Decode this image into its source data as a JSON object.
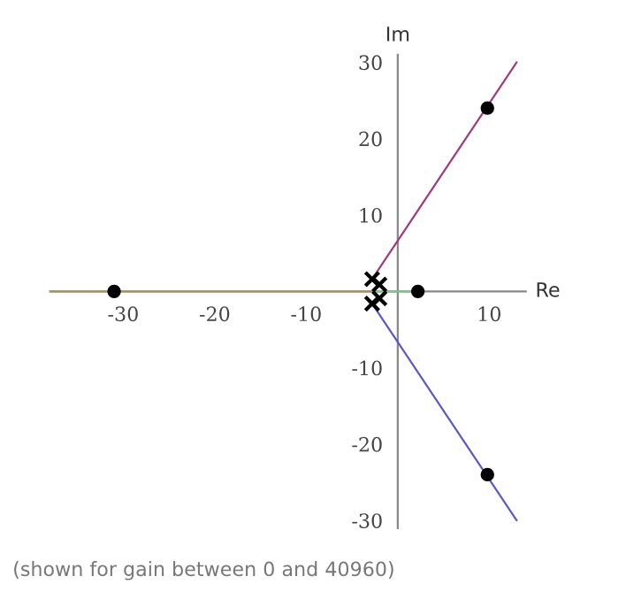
{
  "chart_data": {
    "type": "line",
    "xlabel": "Re",
    "ylabel": "Im",
    "annotations": [
      "(shown for gain between 0 and 40960)"
    ],
    "series": [
      {
        "color": "#9e3d7c",
        "x": [
          -2.8,
          13
        ],
        "values": [
          1.6,
          30
        ]
      },
      {
        "color": "#5a5ac8",
        "x": [
          -2.8,
          13
        ],
        "values": [
          -1.6,
          -30
        ]
      },
      {
        "color": "#a8945a",
        "x": [
          -2.5,
          -38
        ],
        "values": [
          0,
          0
        ]
      },
      {
        "color": "#7cc48c",
        "x": [
          -2.5,
          2.2
        ],
        "values": [
          0,
          0
        ]
      },
      {
        "type": "scatter",
        "marker": "cross",
        "color": "#000000",
        "x": [
          -2.8,
          -2.0,
          -2.0,
          -2.8
        ],
        "values": [
          1.6,
          0.9,
          -0.9,
          -1.6
        ]
      },
      {
        "type": "scatter",
        "marker": "circle",
        "color": "#000000",
        "x": [
          -31,
          2.2,
          9.8,
          9.8
        ],
        "values": [
          0,
          0,
          24,
          -24
        ]
      }
    ],
    "xlim": [
      -38,
      14
    ],
    "ylim": [
      -31,
      31
    ],
    "xticks": [
      -30,
      -20,
      -10,
      10
    ],
    "yticks": [
      -30,
      -20,
      -10,
      10,
      20,
      30
    ],
    "grid": false,
    "legend": false
  }
}
